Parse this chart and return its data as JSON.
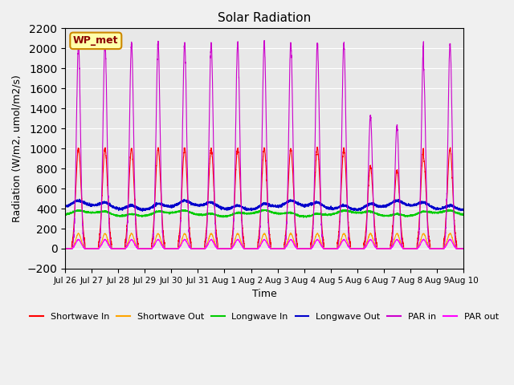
{
  "title": "Solar Radiation",
  "ylabel": "Radiation (W/m2, umol/m2/s)",
  "xlabel": "Time",
  "ylim": [
    -200,
    2200
  ],
  "yticks": [
    -200,
    0,
    200,
    400,
    600,
    800,
    1000,
    1200,
    1400,
    1600,
    1800,
    2000,
    2200
  ],
  "background_color": "#e8e8e8",
  "plot_bg_color": "#e8e8e8",
  "station_label": "WP_met",
  "x_tick_labels": [
    "Jul 26",
    "Jul 27",
    "Jul 28",
    "Jul 29",
    "Jul 30",
    "Jul 31",
    "Aug 1",
    "Aug 2",
    "Aug 3",
    "Aug 4",
    "Aug 5",
    "Aug 6",
    "Aug 7",
    "Aug 8",
    "Aug 9",
    "Aug 10"
  ],
  "colors": {
    "shortwave_in": "#ff0000",
    "shortwave_out": "#ffa500",
    "longwave_in": "#00cc00",
    "longwave_out": "#0000cc",
    "par_in": "#cc00cc",
    "par_out": "#ff00ff"
  },
  "num_days": 15,
  "shortwave_in_peak": 1000,
  "shortwave_out_peak": 150,
  "par_in_peak": 2050,
  "par_out_peak": 90
}
